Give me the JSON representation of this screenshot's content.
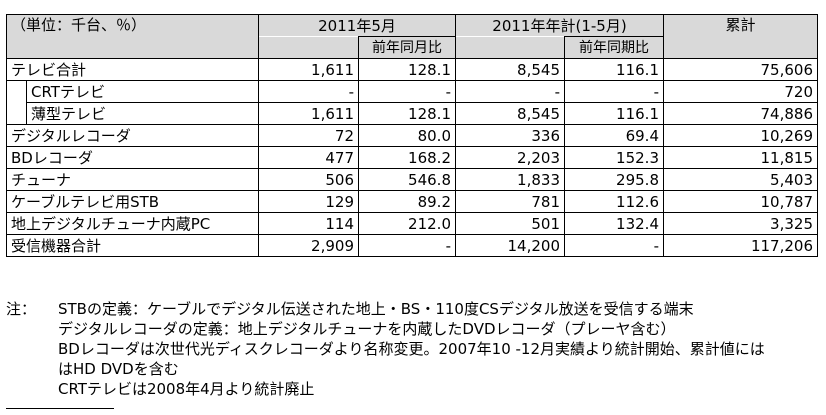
{
  "header": {
    "unit": "（単位：千台、％）",
    "col_2011may": "2011年5月",
    "col_ytd": "2011年年計(1-5月)",
    "col_cumulative": "累計",
    "sub_yoy_month": "前年同月比",
    "sub_yoy_period": "前年同期比"
  },
  "rows": [
    {
      "label": "テレビ合計",
      "may": "1,611",
      "may_yoy": "128.1",
      "ytd": "8,545",
      "ytd_yoy": "116.1",
      "cum": "75,606"
    },
    {
      "label": "CRTテレビ",
      "may": "-",
      "may_yoy": "-",
      "ytd": "-",
      "ytd_yoy": "-",
      "cum": "720"
    },
    {
      "label": "薄型テレビ",
      "may": "1,611",
      "may_yoy": "128.1",
      "ytd": "8,545",
      "ytd_yoy": "116.1",
      "cum": "74,886"
    },
    {
      "label": "デジタルレコーダ",
      "may": "72",
      "may_yoy": "80.0",
      "ytd": "336",
      "ytd_yoy": "69.4",
      "cum": "10,269"
    },
    {
      "label": "BDレコーダ",
      "may": "477",
      "may_yoy": "168.2",
      "ytd": "2,203",
      "ytd_yoy": "152.3",
      "cum": "11,815"
    },
    {
      "label": "チューナ",
      "may": "506",
      "may_yoy": "546.8",
      "ytd": "1,833",
      "ytd_yoy": "295.8",
      "cum": "5,403"
    },
    {
      "label": "ケーブルテレビ用STB",
      "may": "129",
      "may_yoy": "89.2",
      "ytd": "781",
      "ytd_yoy": "112.6",
      "cum": "10,787"
    },
    {
      "label": "地上デジタルチューナ内蔵PC",
      "may": "114",
      "may_yoy": "212.0",
      "ytd": "501",
      "ytd_yoy": "132.4",
      "cum": "3,325"
    },
    {
      "label": "受信機器合計",
      "may": "2,909",
      "may_yoy": "-",
      "ytd": "14,200",
      "ytd_yoy": "-",
      "cum": "117,206"
    }
  ],
  "notes": {
    "lead": "注：",
    "line1": "STBの定義：ケーブルでデジタル伝送された地上・BS・110度CSデジタル放送を受信する端末",
    "line2": "デジタルレコーダの定義：地上デジタルチューナを内蔵したDVDレコーダ（プレーヤ含む）",
    "line3": "BDレコーダは次世代光ディスクレコーダより名称変更。2007年10 -12月実績より統計開始、累計値には",
    "line4": "はHD DVDを含む",
    "line5": "CRTテレビは2008年4月より統計廃止"
  }
}
